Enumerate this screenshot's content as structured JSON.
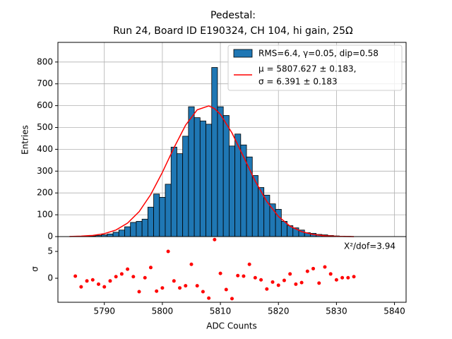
{
  "chart_data": [
    {
      "type": "histogram",
      "title": "Pedestal:",
      "subtitle": "Run 24, Board ID E190324, CH 104, hi gain, 25Ω",
      "ylabel": "Entries",
      "bins": [
        5784.5,
        5785.5,
        5786.5,
        5787.5,
        5788.5,
        5789.5,
        5790.5,
        5791.5,
        5792.5,
        5793.5,
        5794.5,
        5795.5,
        5796.5,
        5797.5,
        5798.5,
        5799.5,
        5800.5,
        5801.5,
        5802.5,
        5803.5,
        5804.5,
        5805.5,
        5806.5,
        5807.5,
        5808.5,
        5809.5,
        5810.5,
        5811.5,
        5812.5,
        5813.5,
        5814.5,
        5815.5,
        5816.5,
        5817.5,
        5818.5,
        5819.5,
        5820.5,
        5821.5,
        5822.5,
        5823.5,
        5824.5,
        5825.5,
        5826.5,
        5827.5,
        5828.5,
        5829.5,
        5830.5,
        5831.5,
        5832.5
      ],
      "counts": [
        1,
        1,
        2,
        3,
        5,
        8,
        12,
        20,
        30,
        45,
        65,
        70,
        80,
        135,
        195,
        180,
        240,
        410,
        380,
        460,
        595,
        545,
        530,
        515,
        775,
        595,
        555,
        415,
        470,
        420,
        365,
        280,
        225,
        190,
        150,
        125,
        70,
        50,
        40,
        30,
        18,
        15,
        10,
        8,
        5,
        3,
        2,
        1
      ],
      "name": "RMS=6.4, γ=0.05, dip=0.58",
      "color": "#1f77b4",
      "edgecolor": "#000000",
      "fit": {
        "name": [
          "μ = 5807.627 ± 0.183,",
          "σ = 6.391 ± 0.183"
        ],
        "color": "#ff0000",
        "x": [
          5784,
          5786,
          5788,
          5790,
          5792,
          5794,
          5796,
          5798,
          5800,
          5802,
          5804,
          5806,
          5808,
          5809,
          5810,
          5812,
          5814,
          5816,
          5818,
          5820,
          5822,
          5824,
          5826,
          5828,
          5830,
          5832,
          5833
        ],
        "y": [
          0.6,
          2.0,
          5.4,
          13.4,
          30.1,
          61.7,
          114.5,
          192.9,
          294.3,
          407.0,
          510.6,
          580.8,
          599.0,
          586.3,
          560.1,
          474.9,
          365.2,
          254.4,
          160.9,
          92.2,
          47.9,
          22.6,
          9.6,
          3.7,
          1.3,
          0.4,
          0.2
        ]
      },
      "xlim": [
        5782,
        5842
      ],
      "ylim": [
        0,
        890
      ],
      "xticks": [
        5790,
        5800,
        5810,
        5820,
        5830,
        5840
      ],
      "yticks": [
        0,
        100,
        200,
        300,
        400,
        500,
        600,
        700,
        800
      ],
      "grid": true,
      "legend": "upper right"
    },
    {
      "type": "scatter",
      "ylabel": "σ",
      "xlabel": "ADC Counts",
      "annotation": "X²/dof=3.94",
      "color": "#ff0000",
      "x": [
        5785,
        5786,
        5787,
        5788,
        5789,
        5790,
        5791,
        5792,
        5793,
        5794,
        5795,
        5796,
        5797,
        5798,
        5799,
        5800,
        5801,
        5802,
        5803,
        5804,
        5805,
        5806,
        5807,
        5808,
        5809,
        5810,
        5811,
        5812,
        5813,
        5814,
        5815,
        5816,
        5817,
        5818,
        5819,
        5820,
        5821,
        5822,
        5823,
        5824,
        5825,
        5826,
        5827,
        5828,
        5829,
        5830,
        5831,
        5832,
        5833
      ],
      "values": [
        0.4,
        -1.6,
        -0.5,
        -0.3,
        -1.1,
        -1.6,
        -0.5,
        0.3,
        0.8,
        1.7,
        0.3,
        -2.5,
        0.1,
        2.0,
        -2.4,
        -1.8,
        5.0,
        -0.5,
        -1.8,
        -1.4,
        2.6,
        -1.4,
        -2.5,
        -3.7,
        7.2,
        0.9,
        -2.1,
        -3.8,
        0.5,
        0.4,
        2.6,
        0.1,
        -0.3,
        -2.0,
        -0.7,
        -1.3,
        -0.4,
        0.8,
        -1.1,
        -0.8,
        1.3,
        1.8,
        -0.9,
        2.1,
        0.8,
        -0.3,
        0.1,
        0.1,
        0.3
      ],
      "xlim": [
        5782,
        5842
      ],
      "ylim": [
        -4.47,
        7.76
      ],
      "xticks": [
        5790,
        5800,
        5810,
        5820,
        5830,
        5840
      ],
      "yticks": [
        0,
        5
      ]
    }
  ]
}
